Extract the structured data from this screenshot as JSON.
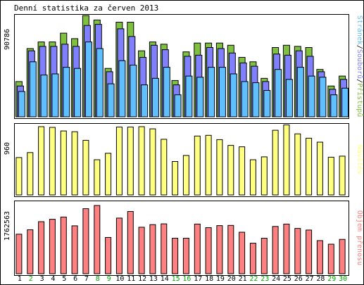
{
  "chart_data": [
    {
      "type": "bar",
      "title": "Denní statistika za červen 2013",
      "ymax_label": "90786",
      "legend": {
        "series1": "Stránek",
        "sep1": "/",
        "series2": "Souborů",
        "sep2": "/",
        "series3": "Přístupů"
      },
      "categories": [
        "1",
        "2",
        "3",
        "4",
        "5",
        "6",
        "7",
        "8",
        "9",
        "10",
        "11",
        "12",
        "13",
        "14",
        "15",
        "16",
        "17",
        "18",
        "19",
        "20",
        "21",
        "22",
        "23",
        "24",
        "25",
        "26",
        "27",
        "28",
        "29",
        "30"
      ],
      "weekend": [
        false,
        true,
        false,
        false,
        false,
        false,
        false,
        true,
        true,
        false,
        false,
        false,
        false,
        false,
        true,
        true,
        false,
        false,
        false,
        false,
        false,
        true,
        true,
        false,
        false,
        false,
        false,
        false,
        true,
        true
      ],
      "series": [
        {
          "name": "Přístupů",
          "color": "#80c040",
          "values": [
            32000,
            62000,
            68000,
            68000,
            76000,
            71000,
            92000,
            88000,
            44000,
            86000,
            86000,
            60000,
            68000,
            66000,
            33000,
            59000,
            67000,
            67000,
            67000,
            65000,
            54000,
            50000,
            35000,
            63000,
            65000,
            64000,
            63000,
            43000,
            28000,
            37000
          ]
        },
        {
          "name": "Souborů",
          "color": "#8080ff",
          "values": [
            28000,
            60000,
            64000,
            64000,
            66000,
            64000,
            83000,
            84000,
            41000,
            80000,
            73000,
            54000,
            65000,
            61000,
            29000,
            55000,
            56000,
            63000,
            62000,
            58000,
            49000,
            46000,
            32000,
            57000,
            56000,
            60000,
            55000,
            41000,
            25000,
            34000
          ]
        },
        {
          "name": "Stránek",
          "color": "#60c0ff",
          "values": [
            23000,
            50000,
            38000,
            39000,
            45000,
            44000,
            68000,
            62000,
            30000,
            51000,
            47000,
            29000,
            35000,
            45000,
            20000,
            37000,
            36000,
            45000,
            45000,
            39000,
            32000,
            31000,
            24000,
            43000,
            34000,
            45000,
            37000,
            36000,
            20000,
            26000
          ]
        }
      ]
    },
    {
      "type": "bar",
      "ymax_label": "960",
      "legend": "Návštěv",
      "series": [
        {
          "name": "Návštěv",
          "color": "#ffff80",
          "values": [
            520,
            590,
            950,
            940,
            890,
            880,
            760,
            490,
            580,
            945,
            945,
            950,
            920,
            775,
            465,
            550,
            820,
            830,
            770,
            690,
            670,
            490,
            530,
            900,
            975,
            850,
            790,
            735,
            525,
            540
          ]
        }
      ]
    },
    {
      "type": "bar",
      "ymax_label": "1762563",
      "legend": "Objem přenosu",
      "series": [
        {
          "name": "Objem přenosu",
          "color": "#ff8080",
          "values": [
            990000,
            1102000,
            1305000,
            1365000,
            1420000,
            1200000,
            1630000,
            1710000,
            910000,
            1395000,
            1560000,
            1165000,
            1230000,
            1250000,
            890000,
            890000,
            1245000,
            1155000,
            1205000,
            1210000,
            1040000,
            765000,
            890000,
            1185000,
            1245000,
            1135000,
            1095000,
            830000,
            740000,
            860000
          ]
        }
      ]
    }
  ],
  "colors": {
    "weekday_label": "#000000",
    "weekend_label": "#00aa00",
    "bg": "#ffffff",
    "border": "#000000"
  }
}
